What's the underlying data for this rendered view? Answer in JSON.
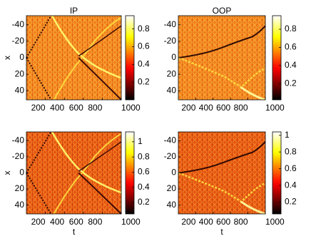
{
  "chart_data": [
    {
      "type": "heatmap",
      "title": "IP",
      "ylabel": "x",
      "xlim": [
        0,
        1000
      ],
      "xticks": [
        200,
        400,
        600,
        800,
        1000
      ],
      "ylim": [
        -51,
        51
      ],
      "yticks": [
        -40,
        -20,
        0,
        20,
        40
      ],
      "y_reversed": true,
      "colormap": "hot",
      "clim": [
        0,
        0.95
      ],
      "cticks": [
        0.2,
        0.4,
        0.6,
        0.8
      ]
    },
    {
      "type": "heatmap",
      "title": "OOP",
      "xlim": [
        0,
        1000
      ],
      "xticks": [
        200,
        400,
        600,
        800,
        1000
      ],
      "ylim": [
        -51,
        51
      ],
      "yticks": [
        -40,
        -20,
        0,
        20,
        40
      ],
      "y_reversed": true,
      "colormap": "hot",
      "clim": [
        0.02,
        0.95
      ],
      "cticks": [
        0.2,
        0.4,
        0.6,
        0.8
      ]
    },
    {
      "type": "heatmap",
      "xlabel": "t",
      "ylabel": "x",
      "xlim": [
        0,
        1000
      ],
      "xticks": [
        200,
        400,
        600,
        800,
        1000
      ],
      "ylim": [
        -51,
        51
      ],
      "yticks": [
        -40,
        -20,
        0,
        20,
        40
      ],
      "y_reversed": true,
      "colormap": "hot",
      "clim": [
        0.05,
        1.13
      ],
      "cticks": [
        0.2,
        0.4,
        0.6,
        0.8,
        1
      ]
    },
    {
      "type": "heatmap",
      "xlabel": "t",
      "xlim": [
        0,
        1000
      ],
      "xticks": [
        200,
        400,
        600,
        800,
        1000
      ],
      "ylim": [
        -51,
        51
      ],
      "yticks": [
        -40,
        -20,
        0,
        20,
        40
      ],
      "y_reversed": true,
      "colormap": "hot",
      "clim": [
        0.06,
        1.04
      ],
      "cticks": [
        0.2,
        0.4,
        0.6,
        0.8,
        1
      ]
    }
  ]
}
